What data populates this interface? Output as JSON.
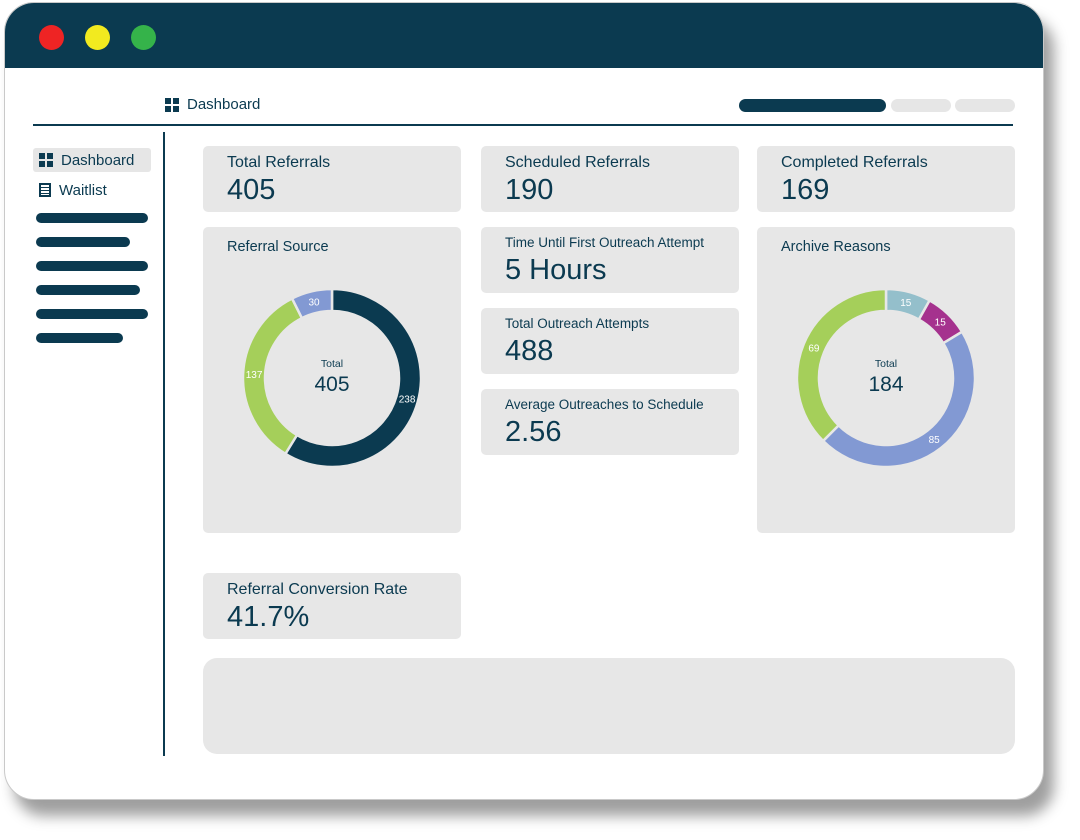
{
  "header": {
    "breadcrumb_label": "Dashboard",
    "breadcrumb_icon": "grid-icon"
  },
  "sidebar": {
    "items": [
      {
        "label": "Dashboard",
        "icon": "grid-icon",
        "active": true
      },
      {
        "label": "Waitlist",
        "icon": "list-icon",
        "active": false
      }
    ]
  },
  "kpis": {
    "total_referrals": {
      "label": "Total Referrals",
      "value": "405"
    },
    "scheduled_referrals": {
      "label": "Scheduled Referrals",
      "value": "190"
    },
    "completed_referrals": {
      "label": "Completed Referrals",
      "value": "169"
    },
    "time_first_outreach": {
      "label": "Time Until First Outreach Attempt",
      "value": "5 Hours"
    },
    "total_outreach_attempts": {
      "label": "Total Outreach Attempts",
      "value": "488"
    },
    "avg_outreaches": {
      "label": "Average Outreaches to Schedule",
      "value": "2.56"
    },
    "conversion_rate": {
      "label": "Referral Conversion Rate",
      "value": "41.7%"
    }
  },
  "colors": {
    "navy": "#0b3a50",
    "green": "#a5cf5a",
    "periwinkle": "#8299d3",
    "teal_light": "#94bfcb",
    "magenta": "#a5328e",
    "card_bg": "#e7e7e7"
  },
  "chart_data": [
    {
      "type": "pie",
      "title": "Referral Source",
      "center_label": "Total",
      "center_value": "405",
      "slices": [
        {
          "value": 238,
          "label": "238",
          "color": "#0b3a50"
        },
        {
          "value": 137,
          "label": "137",
          "color": "#a5cf5a"
        },
        {
          "value": 30,
          "label": "30",
          "color": "#8299d3"
        }
      ]
    },
    {
      "type": "pie",
      "title": "Archive Reasons",
      "center_label": "Total",
      "center_value": "184",
      "slices": [
        {
          "value": 15,
          "label": "15",
          "color": "#94bfcb"
        },
        {
          "value": 15,
          "label": "15",
          "color": "#a5328e"
        },
        {
          "value": 85,
          "label": "85",
          "color": "#8299d3"
        },
        {
          "value": 69,
          "label": "69",
          "color": "#a5cf5a"
        }
      ]
    }
  ]
}
